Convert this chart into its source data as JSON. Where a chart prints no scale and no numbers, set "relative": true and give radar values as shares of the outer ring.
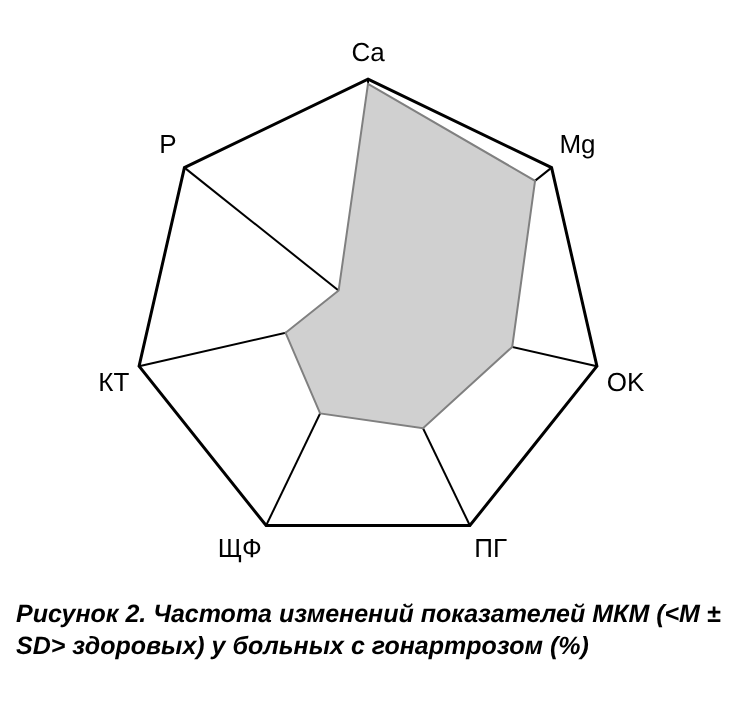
{
  "chart_data": {
    "type": "radar",
    "title": "Рисунок 2. Частота изменений показателей МКМ (<M ± SD> здоровых) у больных с гонартрозом (%)",
    "categories": [
      "Ca",
      "Mg",
      "OK",
      "ПГ",
      "ЩФ",
      "КТ",
      "P"
    ],
    "series": [
      {
        "color": "#d0d0d0",
        "values": [
          0.98,
          0.91,
          0.63,
          0.54,
          0.47,
          0.36,
          0.16
        ]
      }
    ],
    "relative": true,
    "grid": true,
    "legend": false,
    "marker": "none"
  }
}
